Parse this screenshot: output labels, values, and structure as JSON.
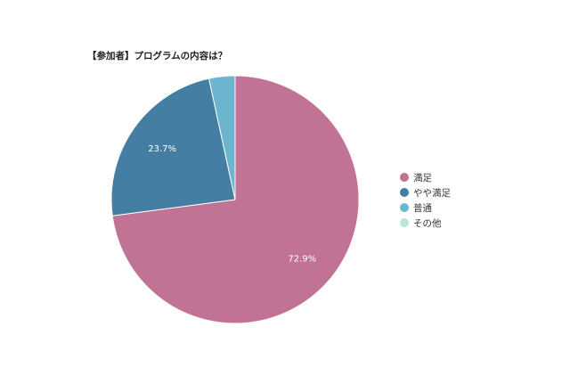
{
  "chart_data": {
    "type": "pie",
    "title": "【参加者】プログラムの内容は？",
    "slices": [
      {
        "label": "満足",
        "value": 72.9,
        "color": "#c07394",
        "value_label": "72.9%"
      },
      {
        "label": "やや満足",
        "value": 23.7,
        "color": "#457ea3",
        "value_label": "23.7%"
      },
      {
        "label": "普通",
        "value": 3.4,
        "color": "#6bb6ce",
        "value_label": ""
      },
      {
        "label": "その他",
        "value": 0.0,
        "color": "#b8e6d8",
        "value_label": ""
      }
    ],
    "start_angle_deg": 0,
    "direction": "clockwise",
    "legend_position": "right"
  }
}
